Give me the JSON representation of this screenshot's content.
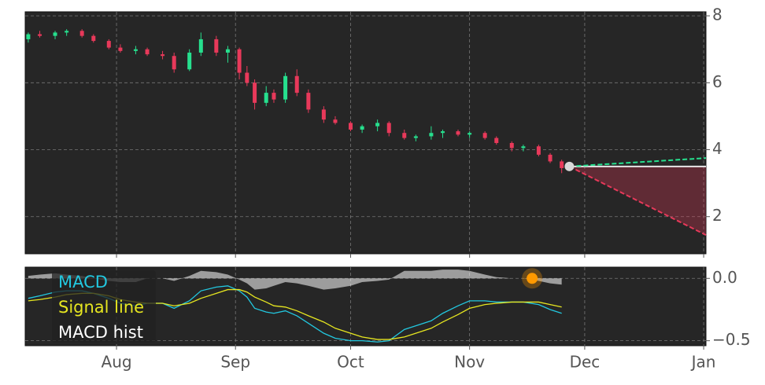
{
  "chart_data": [
    {
      "type": "candlestick",
      "up_color": "#26e08e",
      "down_color": "#e8395a",
      "xlim": [
        7.2,
        184.6
      ],
      "ylim": [
        0.89,
        8.12
      ],
      "yticks": [
        8,
        6,
        4,
        2
      ],
      "grid": true,
      "x": [
        8,
        11,
        15,
        18,
        22,
        25,
        29,
        32,
        36,
        39,
        43,
        46,
        50,
        53,
        57,
        60,
        63,
        65,
        67,
        70,
        72,
        75,
        78,
        81,
        85,
        88,
        92,
        95,
        99,
        102,
        106,
        109,
        113,
        116,
        120,
        123,
        127,
        130,
        134,
        137,
        141,
        144,
        147
      ],
      "candles": [
        [
          7.3,
          7.5,
          7.2,
          7.45
        ],
        [
          7.45,
          7.55,
          7.35,
          7.4
        ],
        [
          7.4,
          7.55,
          7.3,
          7.5
        ],
        [
          7.5,
          7.6,
          7.4,
          7.55
        ],
        [
          7.55,
          7.6,
          7.35,
          7.4
        ],
        [
          7.4,
          7.45,
          7.2,
          7.25
        ],
        [
          7.25,
          7.3,
          7.0,
          7.05
        ],
        [
          7.05,
          7.15,
          6.9,
          6.95
        ],
        [
          6.95,
          7.1,
          6.85,
          7.0
        ],
        [
          7.0,
          7.05,
          6.8,
          6.85
        ],
        [
          6.85,
          6.95,
          6.7,
          6.8
        ],
        [
          6.8,
          6.9,
          6.3,
          6.4
        ],
        [
          6.4,
          7.0,
          6.35,
          6.9
        ],
        [
          6.9,
          7.5,
          6.8,
          7.3
        ],
        [
          7.3,
          7.4,
          6.8,
          6.9
        ],
        [
          6.9,
          7.1,
          6.6,
          7.0
        ],
        [
          7.0,
          7.05,
          6.1,
          6.3
        ],
        [
          6.3,
          6.5,
          5.9,
          6.0
        ],
        [
          6.0,
          6.1,
          5.2,
          5.4
        ],
        [
          5.4,
          5.9,
          5.3,
          5.7
        ],
        [
          5.7,
          5.8,
          5.4,
          5.5
        ],
        [
          5.5,
          6.3,
          5.4,
          6.2
        ],
        [
          6.2,
          6.4,
          5.6,
          5.7
        ],
        [
          5.7,
          5.8,
          5.1,
          5.2
        ],
        [
          5.2,
          5.3,
          4.8,
          4.9
        ],
        [
          4.9,
          5.0,
          4.75,
          4.8
        ],
        [
          4.8,
          4.85,
          4.55,
          4.6
        ],
        [
          4.6,
          4.75,
          4.5,
          4.7
        ],
        [
          4.7,
          4.9,
          4.55,
          4.8
        ],
        [
          4.8,
          4.85,
          4.4,
          4.5
        ],
        [
          4.5,
          4.6,
          4.3,
          4.35
        ],
        [
          4.35,
          4.45,
          4.25,
          4.4
        ],
        [
          4.4,
          4.7,
          4.3,
          4.5
        ],
        [
          4.5,
          4.6,
          4.35,
          4.55
        ],
        [
          4.55,
          4.6,
          4.4,
          4.45
        ],
        [
          4.45,
          4.55,
          4.35,
          4.5
        ],
        [
          4.5,
          4.55,
          4.3,
          4.35
        ],
        [
          4.35,
          4.4,
          4.15,
          4.2
        ],
        [
          4.2,
          4.25,
          3.95,
          4.05
        ],
        [
          4.05,
          4.15,
          3.95,
          4.1
        ],
        [
          4.1,
          4.15,
          3.8,
          3.85
        ],
        [
          3.85,
          3.9,
          3.6,
          3.65
        ],
        [
          3.65,
          3.7,
          3.3,
          3.45
        ]
      ],
      "forecast": {
        "x": [
          149,
          184.6
        ],
        "upper": [
          3.5,
          3.75
        ],
        "flat": [
          3.5,
          3.5
        ],
        "lower": [
          3.5,
          1.45
        ],
        "upper_color": "#26e08e",
        "lower_color": "#e8395a",
        "flat_color": "#e6e6e6",
        "band_color": "#e8395a"
      }
    },
    {
      "type": "line",
      "xlim": [
        7.2,
        184.6
      ],
      "ylim": [
        -0.54,
        0.09
      ],
      "yticks": [
        {
          "value": 0,
          "label": "0.0"
        },
        {
          "value": -0.5,
          "label": "−0.5"
        }
      ],
      "xticks": [
        {
          "value": 31,
          "label": "Aug"
        },
        {
          "value": 62,
          "label": "Sep"
        },
        {
          "value": 92,
          "label": "Oct"
        },
        {
          "value": 123,
          "label": "Nov"
        },
        {
          "value": 153,
          "label": "Dec"
        },
        {
          "value": 184,
          "label": "Jan"
        }
      ],
      "grid": true,
      "x": [
        8,
        11,
        15,
        18,
        22,
        25,
        29,
        32,
        36,
        39,
        43,
        46,
        50,
        53,
        57,
        60,
        63,
        65,
        67,
        70,
        72,
        75,
        78,
        81,
        85,
        88,
        92,
        95,
        99,
        102,
        106,
        109,
        113,
        116,
        120,
        123,
        127,
        130,
        134,
        137,
        141,
        144,
        147
      ],
      "series": [
        {
          "name": "MACD",
          "color": "#22c8e0",
          "values": [
            -0.16,
            -0.14,
            -0.11,
            -0.1,
            -0.1,
            -0.12,
            -0.16,
            -0.2,
            -0.22,
            -0.2,
            -0.2,
            -0.24,
            -0.18,
            -0.1,
            -0.07,
            -0.06,
            -0.1,
            -0.15,
            -0.24,
            -0.27,
            -0.28,
            -0.26,
            -0.3,
            -0.36,
            -0.44,
            -0.48,
            -0.5,
            -0.5,
            -0.51,
            -0.5,
            -0.41,
            -0.38,
            -0.34,
            -0.28,
            -0.22,
            -0.18,
            -0.18,
            -0.19,
            -0.19,
            -0.19,
            -0.21,
            -0.25,
            -0.28
          ]
        },
        {
          "name": "Signal line",
          "color": "#e6e620",
          "values": [
            -0.18,
            -0.17,
            -0.15,
            -0.13,
            -0.12,
            -0.12,
            -0.14,
            -0.17,
            -0.19,
            -0.2,
            -0.2,
            -0.22,
            -0.2,
            -0.16,
            -0.12,
            -0.09,
            -0.09,
            -0.11,
            -0.15,
            -0.19,
            -0.22,
            -0.23,
            -0.26,
            -0.3,
            -0.35,
            -0.4,
            -0.44,
            -0.47,
            -0.49,
            -0.49,
            -0.47,
            -0.44,
            -0.4,
            -0.35,
            -0.29,
            -0.24,
            -0.21,
            -0.2,
            -0.19,
            -0.19,
            -0.19,
            -0.21,
            -0.23
          ]
        },
        {
          "name": "MACD hist",
          "color": "#ffffff",
          "area": true,
          "values": [
            0.02,
            0.03,
            0.04,
            0.03,
            0.02,
            0,
            -0.02,
            -0.03,
            -0.03,
            0,
            0,
            -0.02,
            0.02,
            0.06,
            0.05,
            0.03,
            -0.01,
            -0.04,
            -0.09,
            -0.08,
            -0.06,
            -0.03,
            -0.04,
            -0.06,
            -0.09,
            -0.08,
            -0.06,
            -0.03,
            -0.02,
            -0.01,
            0.06,
            0.06,
            0.06,
            0.07,
            0.07,
            0.06,
            0.03,
            0.01,
            0,
            0,
            -0.02,
            -0.04,
            -0.05
          ]
        }
      ],
      "marker": {
        "x": 139.3,
        "y": 0,
        "color": "#ff9900"
      }
    }
  ]
}
